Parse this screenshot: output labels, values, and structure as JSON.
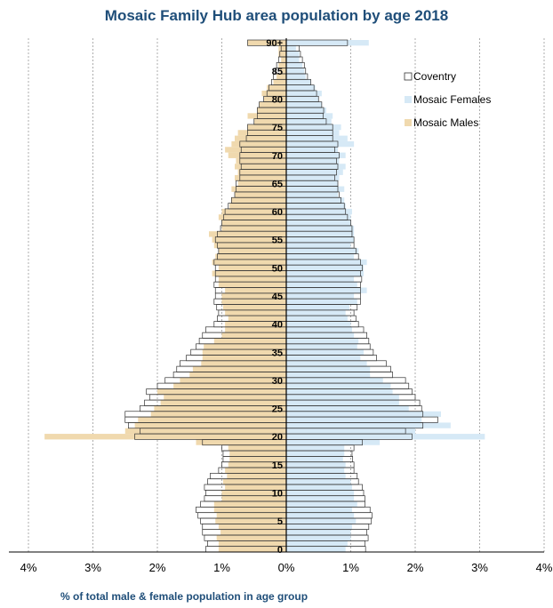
{
  "chart_data": {
    "type": "bar",
    "orientation": "horizontal-population-pyramid",
    "title": "Mosaic Family Hub area population by age 2018",
    "xlabel": "% of total male & female population in age group",
    "ylabel": "",
    "xlim": [
      -4,
      4
    ],
    "x_tick_labels": [
      "4%",
      "3%",
      "2%",
      "1%",
      "0%",
      "1%",
      "2%",
      "3%",
      "4%"
    ],
    "age_tick_labels": [
      "0",
      "5",
      "10",
      "15",
      "20",
      "25",
      "30",
      "35",
      "40",
      "45",
      "50",
      "55",
      "60",
      "65",
      "70",
      "75",
      "80",
      "85",
      "90+"
    ],
    "legend_position": "top-right",
    "grid": "vertical-dashed",
    "series": [
      {
        "name": "Coventry",
        "style": "outline"
      },
      {
        "name": "Mosaic Females",
        "color": "#d6e9f6"
      },
      {
        "name": "Mosaic Males",
        "color": "#f0d9ae"
      }
    ],
    "ages": [
      0,
      1,
      2,
      3,
      4,
      5,
      6,
      7,
      8,
      9,
      10,
      11,
      12,
      13,
      14,
      15,
      16,
      17,
      18,
      19,
      20,
      21,
      22,
      23,
      24,
      25,
      26,
      27,
      28,
      29,
      30,
      31,
      32,
      33,
      34,
      35,
      36,
      37,
      38,
      39,
      40,
      41,
      42,
      43,
      44,
      45,
      46,
      47,
      48,
      49,
      50,
      51,
      52,
      53,
      54,
      55,
      56,
      57,
      58,
      59,
      60,
      61,
      62,
      63,
      64,
      65,
      66,
      67,
      68,
      69,
      70,
      71,
      72,
      73,
      74,
      75,
      76,
      77,
      78,
      79,
      80,
      81,
      82,
      83,
      84,
      85,
      86,
      87,
      88,
      89,
      90
    ],
    "coventry_male": [
      1.25,
      1.22,
      1.27,
      1.3,
      1.3,
      1.33,
      1.37,
      1.4,
      1.33,
      1.27,
      1.25,
      1.27,
      1.22,
      1.18,
      1.05,
      1.0,
      0.98,
      0.98,
      1.0,
      1.3,
      2.35,
      2.27,
      2.45,
      2.5,
      2.5,
      2.27,
      2.2,
      2.12,
      2.17,
      2.0,
      1.88,
      1.75,
      1.7,
      1.65,
      1.55,
      1.48,
      1.4,
      1.35,
      1.3,
      1.25,
      1.12,
      1.07,
      1.05,
      1.08,
      1.12,
      1.1,
      1.1,
      1.12,
      1.1,
      1.1,
      1.1,
      1.12,
      1.07,
      1.05,
      1.07,
      1.1,
      1.07,
      1.02,
      1.0,
      0.97,
      0.95,
      0.9,
      0.85,
      0.8,
      0.78,
      0.78,
      0.72,
      0.72,
      0.7,
      0.72,
      0.72,
      0.7,
      0.72,
      0.62,
      0.6,
      0.6,
      0.5,
      0.45,
      0.45,
      0.42,
      0.35,
      0.3,
      0.27,
      0.23,
      0.2,
      0.17,
      0.15,
      0.12,
      0.1,
      0.08,
      0.6
    ],
    "coventry_female": [
      1.23,
      1.22,
      1.27,
      1.25,
      1.28,
      1.32,
      1.33,
      1.3,
      1.22,
      1.22,
      1.2,
      1.18,
      1.12,
      1.1,
      1.05,
      1.05,
      1.03,
      1.02,
      1.05,
      1.18,
      1.95,
      1.85,
      2.12,
      2.35,
      2.12,
      2.1,
      2.07,
      2.0,
      1.95,
      1.9,
      1.85,
      1.65,
      1.62,
      1.55,
      1.4,
      1.35,
      1.3,
      1.28,
      1.25,
      1.2,
      1.12,
      1.08,
      1.05,
      1.1,
      1.15,
      1.15,
      1.15,
      1.15,
      1.17,
      1.15,
      1.18,
      1.15,
      1.12,
      1.08,
      1.05,
      1.05,
      1.02,
      1.02,
      1.0,
      0.95,
      0.92,
      0.9,
      0.85,
      0.82,
      0.8,
      0.8,
      0.75,
      0.78,
      0.8,
      0.78,
      0.82,
      0.75,
      0.8,
      0.72,
      0.72,
      0.72,
      0.62,
      0.57,
      0.58,
      0.55,
      0.5,
      0.47,
      0.43,
      0.38,
      0.33,
      0.3,
      0.28,
      0.25,
      0.22,
      0.2,
      0.95
    ],
    "mosaic_male": [
      1.05,
      1.05,
      1.08,
      1.02,
      1.05,
      1.1,
      1.08,
      1.12,
      1.12,
      1.0,
      1.0,
      0.95,
      0.98,
      0.92,
      0.95,
      0.9,
      0.88,
      0.88,
      0.9,
      1.4,
      3.75,
      2.5,
      2.35,
      2.3,
      2.1,
      2.05,
      1.95,
      1.9,
      2.0,
      1.75,
      1.65,
      1.5,
      1.45,
      1.32,
      1.3,
      1.3,
      1.28,
      1.12,
      1.0,
      0.95,
      0.95,
      0.9,
      0.95,
      0.98,
      1.0,
      1.0,
      0.95,
      1.05,
      1.05,
      1.15,
      1.05,
      1.15,
      1.1,
      1.05,
      1.12,
      1.15,
      1.2,
      1.0,
      1.0,
      1.05,
      1.0,
      0.88,
      0.85,
      0.8,
      0.85,
      0.75,
      0.8,
      0.75,
      0.8,
      0.78,
      0.9,
      0.95,
      0.85,
      0.8,
      0.75,
      0.6,
      0.5,
      0.6,
      0.45,
      0.42,
      0.35,
      0.38,
      0.3,
      0.2,
      0.15,
      0.1,
      0.12,
      0.08,
      0.12,
      0.12,
      0.6
    ],
    "mosaic_female": [
      0.92,
      0.95,
      1.0,
      1.0,
      1.02,
      1.08,
      1.05,
      1.02,
      1.1,
      1.05,
      1.05,
      1.02,
      1.0,
      0.92,
      0.9,
      0.92,
      0.88,
      0.9,
      0.9,
      1.45,
      3.08,
      2.0,
      2.55,
      2.1,
      2.4,
      1.9,
      1.75,
      1.75,
      1.65,
      1.62,
      1.5,
      1.3,
      1.3,
      1.25,
      1.15,
      1.2,
      1.1,
      1.12,
      1.05,
      1.02,
      1.0,
      0.95,
      0.92,
      0.98,
      1.1,
      1.05,
      1.25,
      1.1,
      1.05,
      1.2,
      1.2,
      1.25,
      1.05,
      1.12,
      1.0,
      1.05,
      1.05,
      1.05,
      1.0,
      1.0,
      1.02,
      0.92,
      0.9,
      0.8,
      0.9,
      0.8,
      0.82,
      0.88,
      0.92,
      0.82,
      0.92,
      0.8,
      1.05,
      0.95,
      0.82,
      0.85,
      0.7,
      0.72,
      0.62,
      0.55,
      0.5,
      0.55,
      0.45,
      0.38,
      0.3,
      0.28,
      0.25,
      0.2,
      0.2,
      0.15,
      1.28
    ]
  }
}
